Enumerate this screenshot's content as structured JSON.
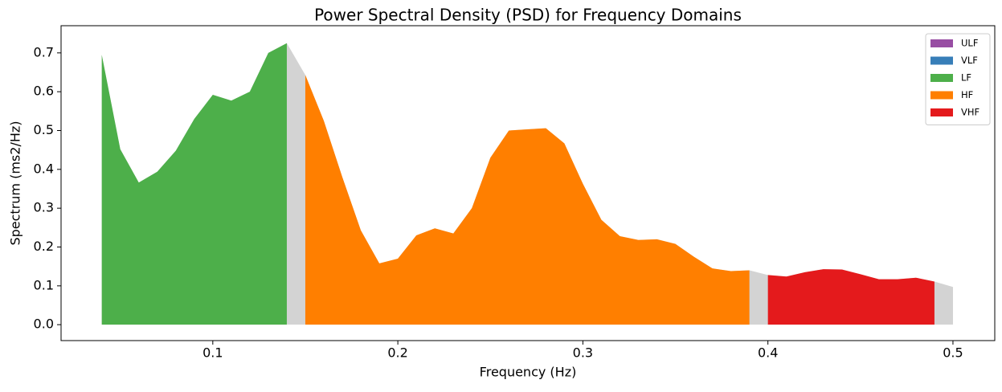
{
  "chart_data": {
    "type": "area",
    "title": "Power Spectral Density (PSD) for Frequency Domains",
    "x_label": "Frequency (Hz)",
    "y_label": "Spectrum (ms2/Hz)",
    "x": [
      0.04,
      0.05,
      0.06,
      0.07,
      0.08,
      0.09,
      0.1,
      0.11,
      0.12,
      0.13,
      0.14,
      0.15,
      0.16,
      0.17,
      0.18,
      0.19,
      0.2,
      0.21,
      0.22,
      0.23,
      0.24,
      0.25,
      0.26,
      0.27,
      0.28,
      0.29,
      0.3,
      0.31,
      0.32,
      0.33,
      0.34,
      0.35,
      0.36,
      0.37,
      0.38,
      0.39,
      0.4,
      0.41,
      0.42,
      0.43,
      0.44,
      0.45,
      0.46,
      0.47,
      0.48,
      0.49,
      0.5
    ],
    "values": [
      0.695,
      0.452,
      0.366,
      0.394,
      0.448,
      0.53,
      0.592,
      0.577,
      0.6,
      0.7,
      0.725,
      0.643,
      0.525,
      0.38,
      0.243,
      0.158,
      0.17,
      0.23,
      0.248,
      0.235,
      0.3,
      0.43,
      0.5,
      0.503,
      0.506,
      0.467,
      0.363,
      0.27,
      0.228,
      0.218,
      0.22,
      0.208,
      0.175,
      0.145,
      0.138,
      0.14,
      0.128,
      0.124,
      0.135,
      0.143,
      0.142,
      0.13,
      0.117,
      0.117,
      0.121,
      0.111,
      0.097
    ],
    "base_color": "#d3d3d3",
    "series": [
      {
        "name": "ULF",
        "color": "#984ea3"
      },
      {
        "name": "VLF",
        "color": "#377eb8"
      },
      {
        "name": "LF",
        "color": "#4daf4a",
        "band": [
          0.04,
          0.14
        ]
      },
      {
        "name": "HF",
        "color": "#ff7f00",
        "band": [
          0.15,
          0.39
        ]
      },
      {
        "name": "VHF",
        "color": "#e41a1c",
        "band": [
          0.4,
          0.49
        ]
      }
    ],
    "xlim": [
      0.018,
      0.5226
    ],
    "ylim": [
      -0.041,
      0.77
    ],
    "xticks": [
      0.1,
      0.2,
      0.3,
      0.4,
      0.5
    ],
    "yticks": [
      {
        "value": 0,
        "label": "0.0"
      },
      0.1,
      0.2,
      0.3,
      0.4,
      0.5,
      0.6,
      0.7
    ],
    "legend": "upper right"
  }
}
